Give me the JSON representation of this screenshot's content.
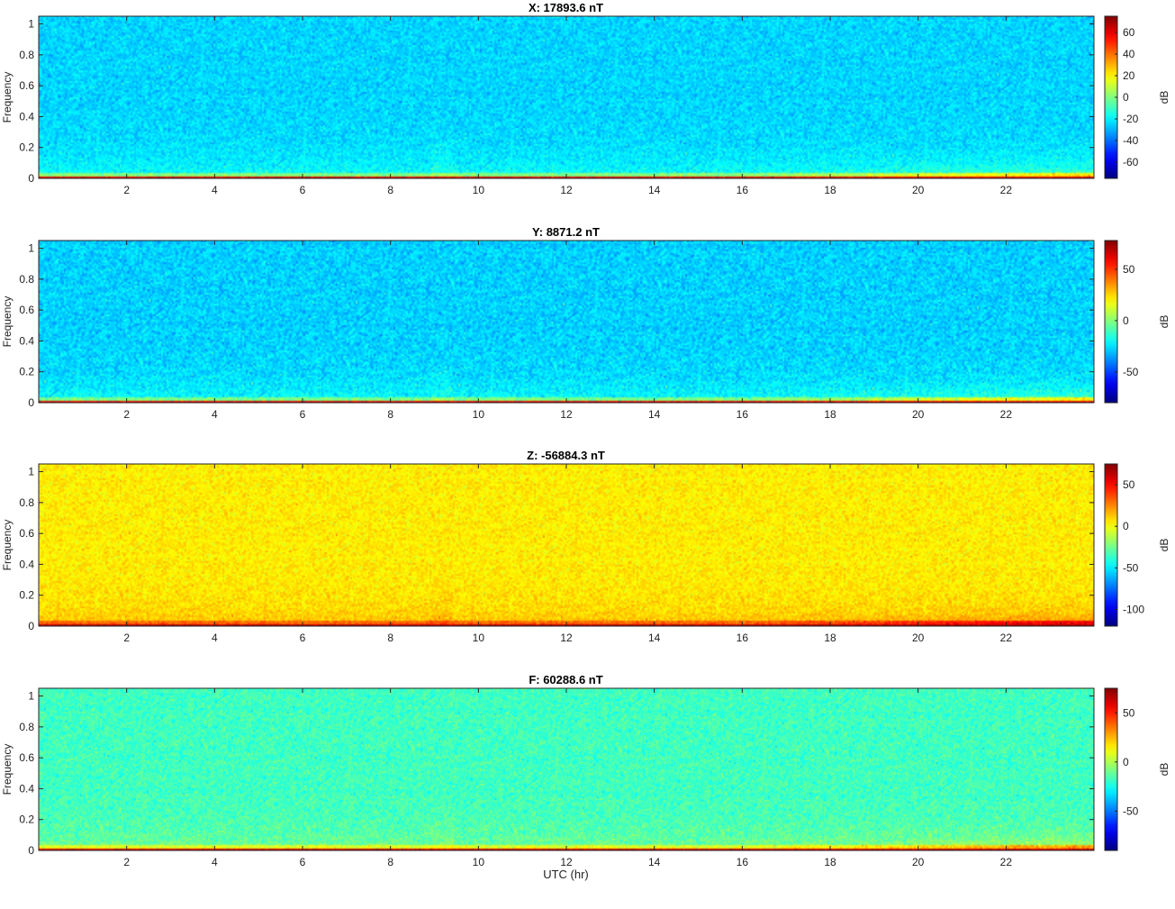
{
  "chart_data": [
    {
      "type": "heatmap",
      "title": "X: 17893.6 nT",
      "ylabel": "Frequency",
      "xlabel": "",
      "xlim": [
        0,
        24
      ],
      "ylim": [
        0,
        1.05
      ],
      "xticks": [
        2,
        4,
        6,
        8,
        10,
        12,
        14,
        16,
        18,
        20,
        22
      ],
      "yticks": [
        0,
        0.2,
        0.4,
        0.6,
        0.8,
        1
      ],
      "colorbar": {
        "label": "dB",
        "range": [
          -75,
          75
        ],
        "ticks": [
          60,
          40,
          20,
          0,
          -20,
          -40,
          -60
        ]
      },
      "background_level_db": -25,
      "lowfreq_band_level_db": 60,
      "noise_spread_db": 12
    },
    {
      "type": "heatmap",
      "title": "Y: 8871.2 nT",
      "ylabel": "Frequency",
      "xlabel": "",
      "xlim": [
        0,
        24
      ],
      "ylim": [
        0,
        1.05
      ],
      "xticks": [
        2,
        4,
        6,
        8,
        10,
        12,
        14,
        16,
        18,
        20,
        22
      ],
      "yticks": [
        0,
        0.2,
        0.4,
        0.6,
        0.8,
        1
      ],
      "colorbar": {
        "label": "dB",
        "range": [
          -80,
          78
        ],
        "ticks": [
          50,
          0,
          -50
        ]
      },
      "background_level_db": -28,
      "lowfreq_band_level_db": 62,
      "noise_spread_db": 14
    },
    {
      "type": "heatmap",
      "title": "Z: -56884.3 nT",
      "ylabel": "Frequency",
      "xlabel": "",
      "xlim": [
        0,
        24
      ],
      "ylim": [
        0,
        1.05
      ],
      "xticks": [
        2,
        4,
        6,
        8,
        10,
        12,
        14,
        16,
        18,
        20,
        22
      ],
      "yticks": [
        0,
        0.2,
        0.4,
        0.6,
        0.8,
        1
      ],
      "colorbar": {
        "label": "dB",
        "range": [
          -120,
          75
        ],
        "ticks": [
          50,
          0,
          -50,
          -100
        ]
      },
      "background_level_db": 5,
      "lowfreq_band_level_db": 65,
      "noise_spread_db": 14
    },
    {
      "type": "heatmap",
      "title": "F: 60288.6 nT",
      "ylabel": "Frequency",
      "xlabel": "UTC (hr)",
      "xlim": [
        0,
        24
      ],
      "ylim": [
        0,
        1.05
      ],
      "xticks": [
        2,
        4,
        6,
        8,
        10,
        12,
        14,
        16,
        18,
        20,
        22
      ],
      "yticks": [
        0,
        0.2,
        0.4,
        0.6,
        0.8,
        1
      ],
      "colorbar": {
        "label": "dB",
        "range": [
          -90,
          75
        ],
        "ticks": [
          50,
          0,
          -50
        ]
      },
      "background_level_db": -18,
      "lowfreq_band_level_db": 62,
      "noise_spread_db": 14
    }
  ],
  "colors": {
    "colormap": "jet",
    "axis_line": "#262626",
    "text": "#222222"
  }
}
